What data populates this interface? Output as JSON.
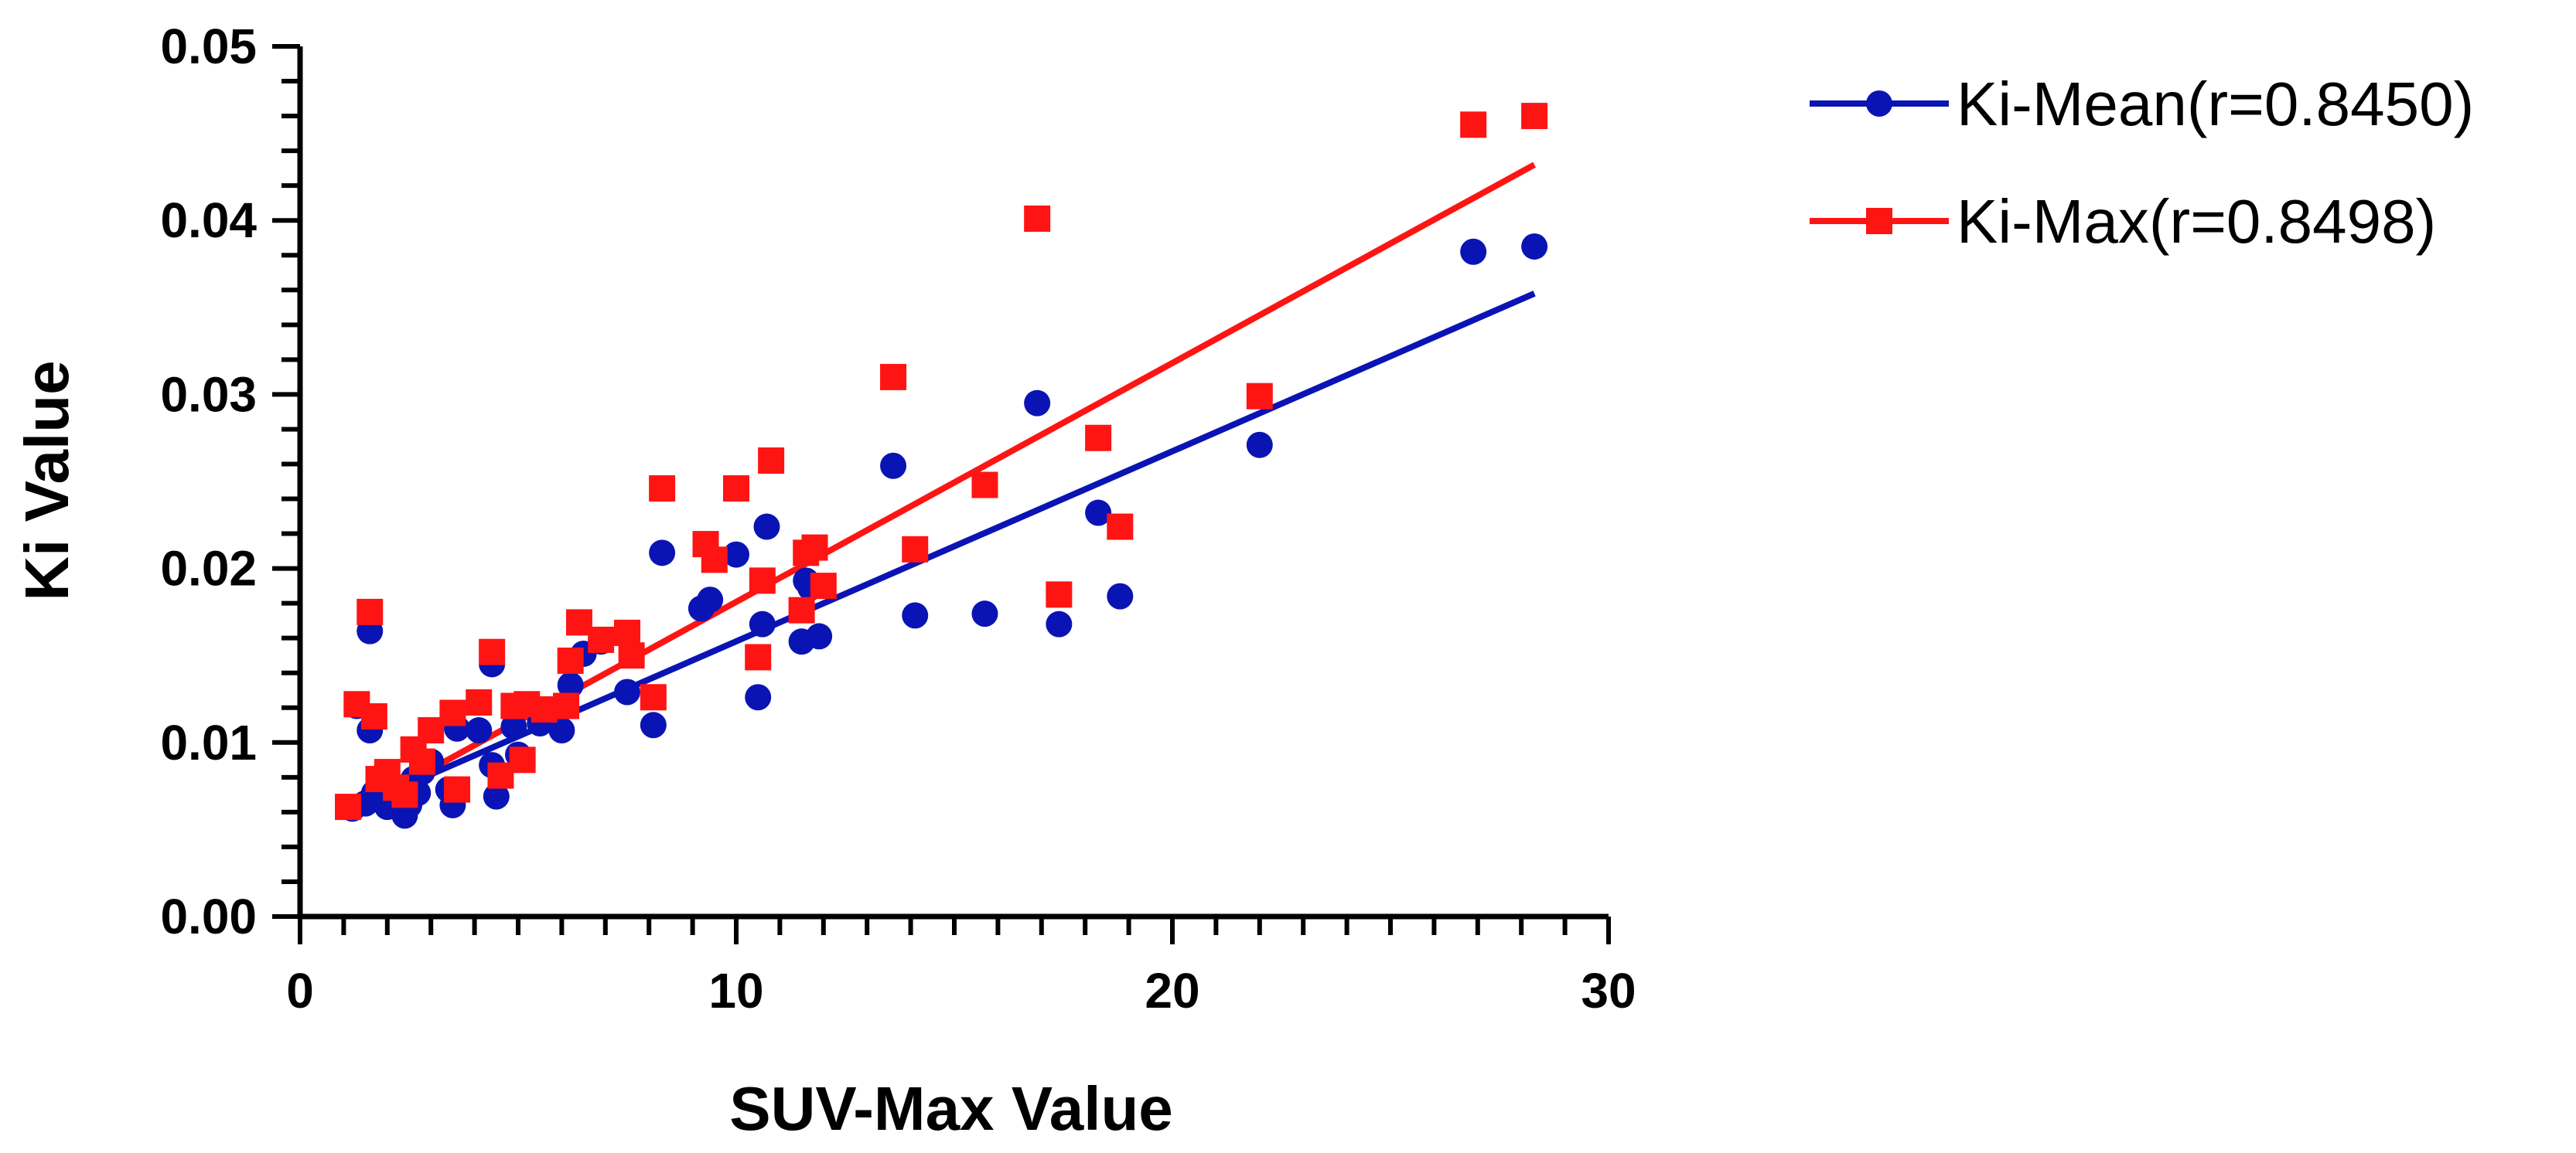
{
  "chart_data": {
    "type": "scatter",
    "title": "",
    "xlabel": "SUV-Max Value",
    "ylabel": "Ki Value",
    "xlim": [
      0,
      30
    ],
    "ylim": [
      0,
      0.05
    ],
    "x_ticks": [
      "0",
      "10",
      "20",
      "30"
    ],
    "y_ticks": [
      "0.00",
      "0.01",
      "0.02",
      "0.03",
      "0.04",
      "0.05"
    ],
    "grid": false,
    "legend_position": "top-right",
    "series": [
      {
        "name": "Ki-Mean(r=0.8450)",
        "color": "#0a14b4",
        "marker": "circle",
        "fit": [
          [
            1.2,
            0.0062
          ],
          [
            28.3,
            0.0358
          ]
        ],
        "points": [
          [
            1.2,
            0.0062
          ],
          [
            1.3,
            0.0121
          ],
          [
            1.5,
            0.0065
          ],
          [
            1.6,
            0.0164
          ],
          [
            1.6,
            0.0107
          ],
          [
            1.7,
            0.0071
          ],
          [
            1.8,
            0.0068
          ],
          [
            1.9,
            0.0075
          ],
          [
            2.0,
            0.0063
          ],
          [
            2.1,
            0.0072
          ],
          [
            2.2,
            0.0066
          ],
          [
            2.3,
            0.0069
          ],
          [
            2.4,
            0.0058
          ],
          [
            2.5,
            0.0064
          ],
          [
            2.6,
            0.0079
          ],
          [
            2.7,
            0.0071
          ],
          [
            2.8,
            0.0083
          ],
          [
            3.0,
            0.0089
          ],
          [
            3.4,
            0.0073
          ],
          [
            3.5,
            0.0064
          ],
          [
            3.6,
            0.0108
          ],
          [
            4.1,
            0.0107
          ],
          [
            4.4,
            0.0145
          ],
          [
            4.4,
            0.0087
          ],
          [
            4.5,
            0.0069
          ],
          [
            4.9,
            0.0109
          ],
          [
            5.0,
            0.0093
          ],
          [
            5.5,
            0.0111
          ],
          [
            6.0,
            0.0107
          ],
          [
            6.2,
            0.0133
          ],
          [
            6.5,
            0.0151
          ],
          [
            6.9,
            0.0158
          ],
          [
            7.5,
            0.0129
          ],
          [
            8.1,
            0.011
          ],
          [
            8.3,
            0.0209
          ],
          [
            9.2,
            0.0177
          ],
          [
            9.4,
            0.0182
          ],
          [
            10.0,
            0.0208
          ],
          [
            10.5,
            0.0126
          ],
          [
            10.6,
            0.0168
          ],
          [
            10.7,
            0.0224
          ],
          [
            11.5,
            0.0158
          ],
          [
            11.6,
            0.0193
          ],
          [
            11.7,
            0.0189
          ],
          [
            11.9,
            0.0161
          ],
          [
            13.6,
            0.0259
          ],
          [
            14.1,
            0.0173
          ],
          [
            15.7,
            0.0174
          ],
          [
            16.9,
            0.0295
          ],
          [
            17.4,
            0.0168
          ],
          [
            18.3,
            0.0232
          ],
          [
            18.8,
            0.0184
          ],
          [
            22.0,
            0.0271
          ],
          [
            26.9,
            0.0382
          ],
          [
            28.3,
            0.0385
          ]
        ]
      },
      {
        "name": "Ki-Max(r=0.8498)",
        "color": "#ff1414",
        "marker": "square",
        "fit": [
          [
            1.2,
            0.006
          ],
          [
            28.3,
            0.0432
          ]
        ],
        "points": [
          [
            1.1,
            0.0063
          ],
          [
            1.3,
            0.0122
          ],
          [
            1.6,
            0.0175
          ],
          [
            1.7,
            0.0115
          ],
          [
            1.8,
            0.0079
          ],
          [
            2.0,
            0.0083
          ],
          [
            2.2,
            0.0074
          ],
          [
            2.4,
            0.007
          ],
          [
            2.6,
            0.0096
          ],
          [
            2.8,
            0.0089
          ],
          [
            3.0,
            0.0107
          ],
          [
            3.5,
            0.0117
          ],
          [
            3.6,
            0.0073
          ],
          [
            4.1,
            0.0123
          ],
          [
            4.4,
            0.0152
          ],
          [
            4.6,
            0.0081
          ],
          [
            4.9,
            0.0121
          ],
          [
            5.1,
            0.009
          ],
          [
            5.2,
            0.0122
          ],
          [
            5.6,
            0.0119
          ],
          [
            6.1,
            0.0121
          ],
          [
            6.2,
            0.0147
          ],
          [
            6.4,
            0.0169
          ],
          [
            6.9,
            0.0159
          ],
          [
            7.5,
            0.0163
          ],
          [
            7.6,
            0.015
          ],
          [
            8.1,
            0.0126
          ],
          [
            8.3,
            0.0246
          ],
          [
            9.3,
            0.0214
          ],
          [
            9.5,
            0.0205
          ],
          [
            10.0,
            0.0246
          ],
          [
            10.5,
            0.0149
          ],
          [
            10.6,
            0.0193
          ],
          [
            10.8,
            0.0262
          ],
          [
            11.5,
            0.0176
          ],
          [
            11.6,
            0.0209
          ],
          [
            11.8,
            0.0212
          ],
          [
            12.0,
            0.019
          ],
          [
            13.6,
            0.031
          ],
          [
            14.1,
            0.0211
          ],
          [
            15.7,
            0.0248
          ],
          [
            16.9,
            0.0401
          ],
          [
            17.4,
            0.0185
          ],
          [
            18.3,
            0.0275
          ],
          [
            18.8,
            0.0224
          ],
          [
            22.0,
            0.0299
          ],
          [
            26.9,
            0.0455
          ],
          [
            28.3,
            0.046
          ]
        ]
      }
    ]
  }
}
